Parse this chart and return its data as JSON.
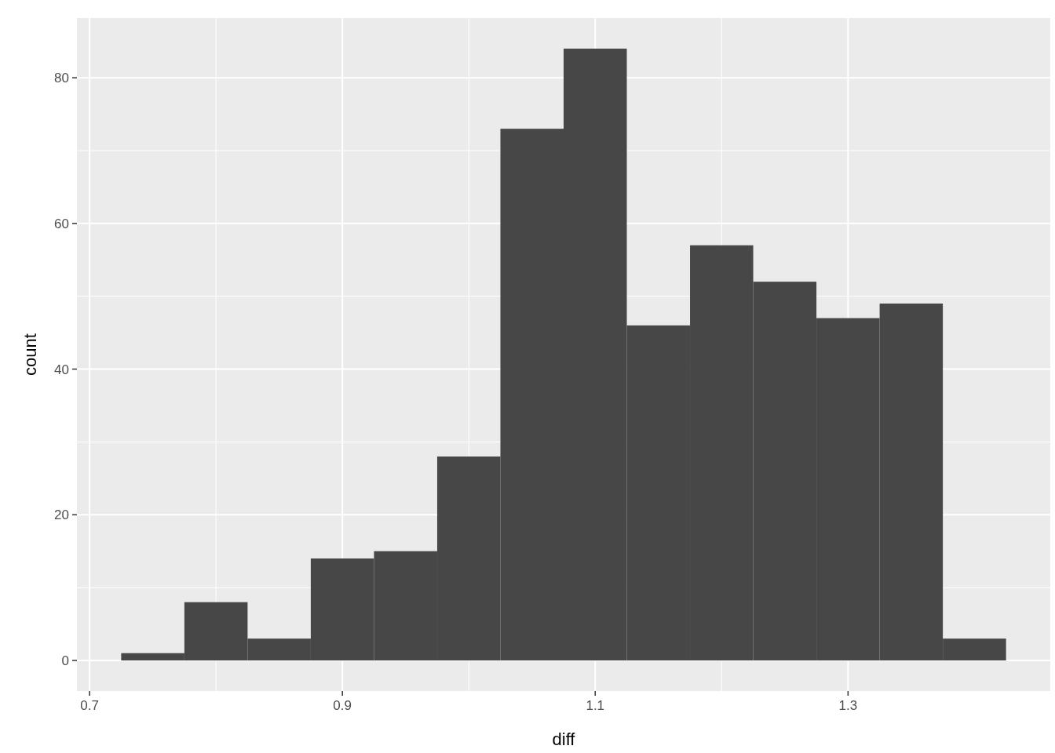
{
  "chart_data": {
    "type": "histogram",
    "xlabel": "diff",
    "ylabel": "count",
    "bins": [
      0.725,
      0.775,
      0.825,
      0.875,
      0.925,
      0.975,
      1.025,
      1.075,
      1.125,
      1.175,
      1.225,
      1.275,
      1.325,
      1.375,
      1.425
    ],
    "values": [
      1,
      8,
      3,
      14,
      15,
      28,
      73,
      84,
      46,
      57,
      52,
      47,
      49,
      3
    ],
    "color": "#474747",
    "xlim": [
      0.69,
      1.46
    ],
    "xticks": [
      0.7,
      0.9,
      1.1,
      1.3
    ],
    "ylim": [
      -4.2,
      88.2
    ],
    "yticks": [
      0,
      20,
      40,
      60,
      80
    ],
    "grid": true
  }
}
